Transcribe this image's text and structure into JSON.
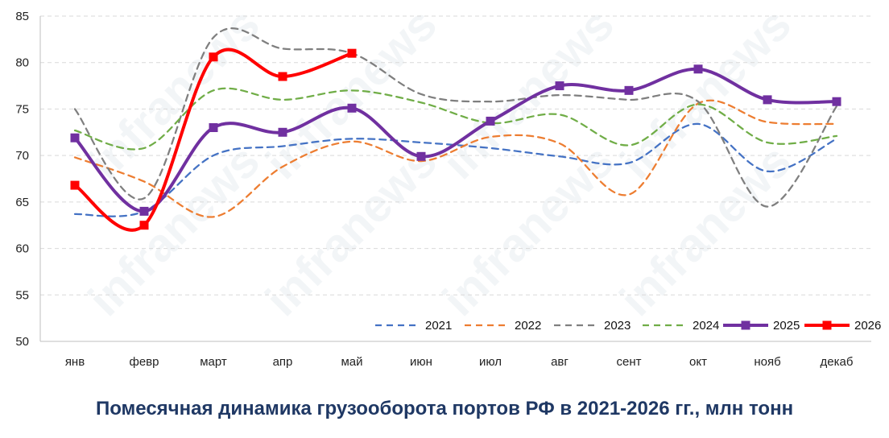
{
  "chart_data": {
    "type": "line",
    "title": "Помесячная динамика грузооборота портов РФ в 2021-2026 гг., млн тонн",
    "categories": [
      "янв",
      "февр",
      "март",
      "апр",
      "май",
      "июн",
      "июл",
      "авг",
      "сент",
      "окт",
      "нояб",
      "декаб"
    ],
    "ylim": [
      50,
      85
    ],
    "yticks": [
      50,
      55,
      60,
      65,
      70,
      75,
      80,
      85
    ],
    "grid": true,
    "legend": "bottom-right",
    "watermark": "infranews",
    "series": [
      {
        "name": "2021",
        "color": "#4472c4",
        "style": "dashed",
        "values": [
          63.7,
          64.0,
          70.0,
          71.0,
          71.8,
          71.4,
          70.8,
          69.9,
          69.2,
          73.4,
          68.3,
          71.8
        ]
      },
      {
        "name": "2022",
        "color": "#ed7d31",
        "style": "dashed",
        "values": [
          69.8,
          67.2,
          63.4,
          68.8,
          71.5,
          69.4,
          72.0,
          71.3,
          65.8,
          75.6,
          73.6,
          73.4
        ]
      },
      {
        "name": "2023",
        "color": "#7f7f7f",
        "style": "dashed",
        "values": [
          75.0,
          65.4,
          82.7,
          81.5,
          81.0,
          76.6,
          75.8,
          76.5,
          76.0,
          75.8,
          64.5,
          75.3
        ]
      },
      {
        "name": "2024",
        "color": "#70ad47",
        "style": "dashed",
        "values": [
          72.7,
          70.8,
          77.0,
          76.0,
          77.0,
          75.7,
          73.5,
          74.4,
          71.1,
          75.5,
          71.4,
          72.1
        ]
      },
      {
        "name": "2025",
        "color": "#7030a0",
        "style": "solid",
        "marker": "square",
        "values": [
          71.9,
          64.0,
          73.0,
          72.5,
          75.1,
          69.9,
          73.7,
          77.5,
          77.0,
          79.3,
          76.0,
          75.8
        ]
      },
      {
        "name": "2026",
        "color": "#ff0000",
        "style": "solid",
        "marker": "square",
        "values": [
          66.8,
          62.5,
          80.6,
          78.5,
          81.0,
          null,
          null,
          null,
          null,
          null,
          null,
          null
        ]
      }
    ]
  }
}
